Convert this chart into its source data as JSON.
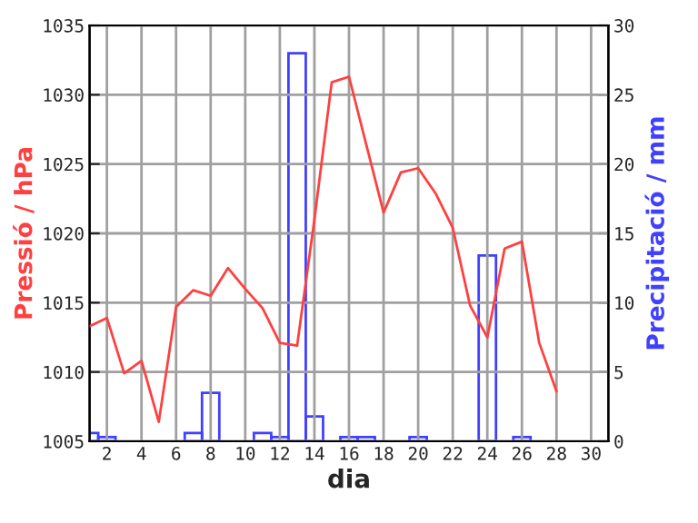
{
  "chart_data": {
    "type": "line",
    "xlabel": "dia",
    "ylabel": "Pressió / hPa",
    "y2label": "Precipitació / mm",
    "xlim": [
      1,
      31
    ],
    "xticks": [
      2,
      4,
      6,
      8,
      10,
      12,
      14,
      16,
      18,
      20,
      22,
      24,
      26,
      28,
      30
    ],
    "ylim": [
      1005,
      1035
    ],
    "yticks": [
      1005,
      1010,
      1015,
      1020,
      1025,
      1030,
      1035
    ],
    "y2lim": [
      0,
      30
    ],
    "y2ticks": [
      0,
      5,
      10,
      15,
      20,
      25,
      30
    ],
    "grid": true,
    "series": [
      {
        "color": "#ff4040",
        "x": [
          1,
          2,
          3,
          4,
          5,
          6,
          7,
          8,
          9,
          10,
          11,
          12,
          13,
          14,
          15,
          16,
          17,
          18,
          19,
          20,
          21,
          22,
          23,
          24,
          25,
          26,
          27,
          28
        ],
        "values": [
          1013.3,
          1013.9,
          1009.9,
          1010.8,
          1006.4,
          1014.7,
          1015.9,
          1015.5,
          1017.5,
          1016.0,
          1014.6,
          1012.1,
          1011.9,
          1021.0,
          1030.9,
          1031.3,
          1026.4,
          1021.5,
          1024.4,
          1024.7,
          1022.9,
          1020.4,
          1014.8,
          1012.5,
          1018.9,
          1019.4,
          1012.1,
          1008.6
        ]
      },
      {
        "type": "bar",
        "axis": "y2",
        "color": "#4040ff",
        "x": [
          1,
          2,
          7,
          8,
          11,
          12,
          13,
          14,
          16,
          17,
          20,
          24,
          26
        ],
        "values": [
          0.6,
          0.3,
          0.6,
          3.5,
          0.6,
          0.3,
          28,
          1.8,
          0.3,
          0.3,
          0.3,
          13.4,
          0.3
        ]
      }
    ]
  }
}
